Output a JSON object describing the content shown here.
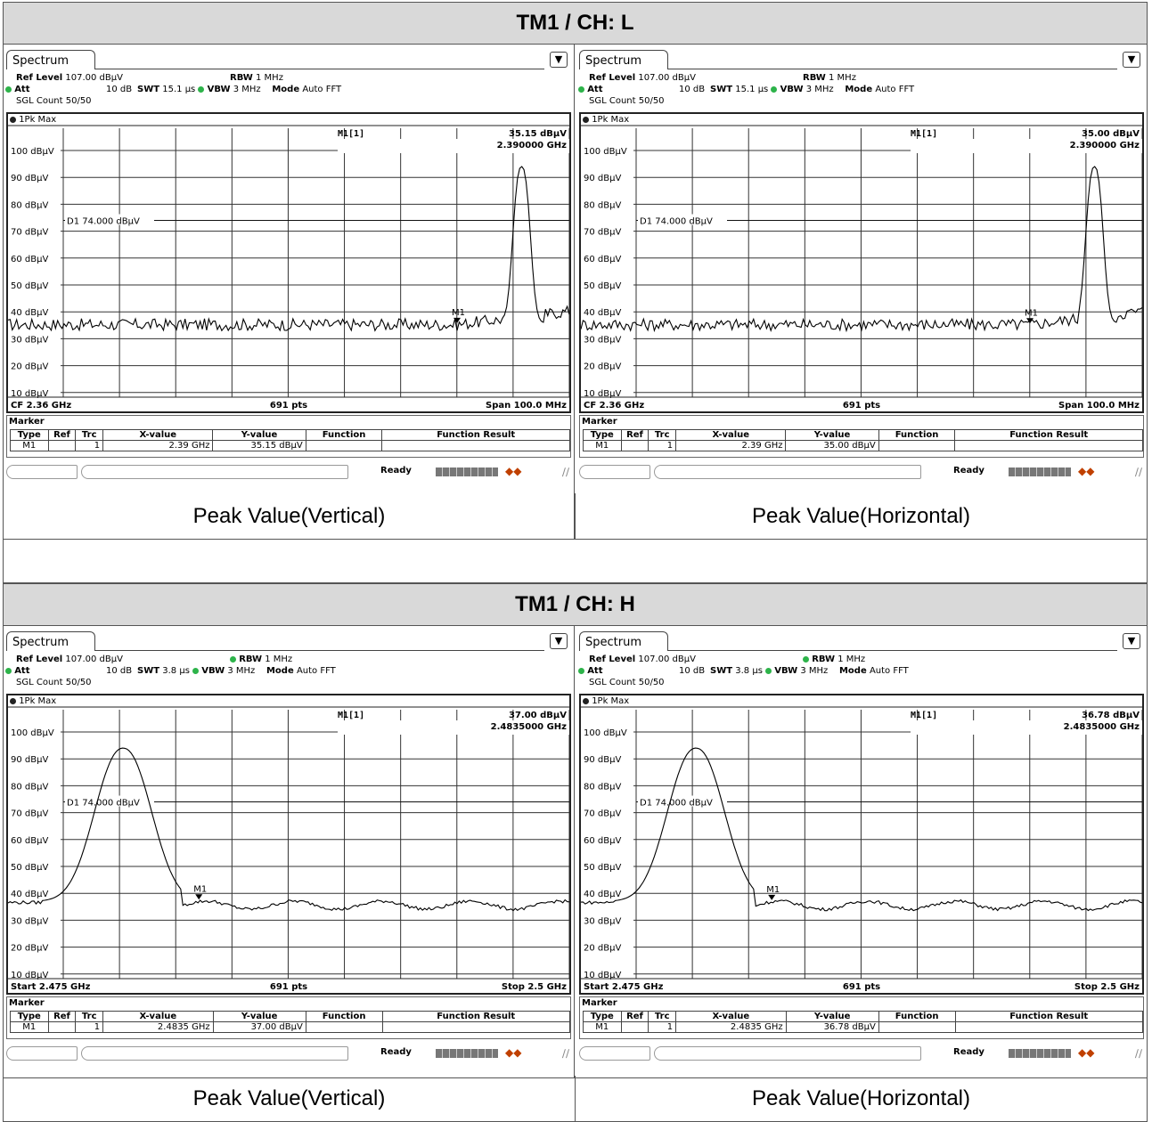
{
  "sections": [
    {
      "title": "TM1 / CH: L",
      "captions": [
        "Peak Value(Vertical)",
        "Peak Value(Horizontal)"
      ],
      "panels": [
        {
          "tab": "Spectrum",
          "ref_level_label": "Ref Level",
          "ref_level": "107.00 dBµV",
          "att_label": "Att",
          "att": "10 dB",
          "swt_label": "SWT",
          "swt": "15.1 µs",
          "rbw_label": "RBW",
          "rbw": "1 MHz",
          "vbw_label": "VBW",
          "vbw": "3 MHz",
          "mode_label": "Mode",
          "mode": "Auto FFT",
          "sgl_count": "SGL Count 50/50",
          "trace_label": "1Pk Max",
          "marker_name": "M1[1]",
          "marker_value": "35.15 dBµV",
          "marker_freq": "2.390000 GHz",
          "display_line": "D1  74.000 dBµV",
          "footer_left": "CF 2.36 GHz",
          "footer_mid": "691 pts",
          "footer_right": "Span 100.0 MHz",
          "marker_section": "Marker",
          "table_headers": [
            "Type",
            "Ref",
            "Trc",
            "X-value",
            "Y-value",
            "Function",
            "Function Result"
          ],
          "table_row": [
            "M1",
            "",
            "1",
            "2.39 GHz",
            "35.15 dBµV",
            "",
            ""
          ],
          "status": "Ready",
          "marker_x_frac": 0.8,
          "trace_type": "low"
        },
        {
          "tab": "Spectrum",
          "ref_level_label": "Ref Level",
          "ref_level": "107.00 dBµV",
          "att_label": "Att",
          "att": "10 dB",
          "swt_label": "SWT",
          "swt": "15.1 µs",
          "rbw_label": "RBW",
          "rbw": "1 MHz",
          "vbw_label": "VBW",
          "vbw": "3 MHz",
          "mode_label": "Mode",
          "mode": "Auto FFT",
          "sgl_count": "SGL Count 50/50",
          "trace_label": "1Pk Max",
          "marker_name": "M1[1]",
          "marker_value": "35.00 dBµV",
          "marker_freq": "2.390000 GHz",
          "display_line": "D1  74.000 dBµV",
          "footer_left": "CF 2.36 GHz",
          "footer_mid": "691 pts",
          "footer_right": "Span 100.0 MHz",
          "marker_section": "Marker",
          "table_headers": [
            "Type",
            "Ref",
            "Trc",
            "X-value",
            "Y-value",
            "Function",
            "Function Result"
          ],
          "table_row": [
            "M1",
            "",
            "1",
            "2.39 GHz",
            "35.00 dBµV",
            "",
            ""
          ],
          "status": "Ready",
          "marker_x_frac": 0.8,
          "trace_type": "low"
        }
      ]
    },
    {
      "title": "TM1 / CH: H",
      "captions": [
        "Peak Value(Vertical)",
        "Peak Value(Horizontal)"
      ],
      "panels": [
        {
          "tab": "Spectrum",
          "ref_level_label": "Ref Level",
          "ref_level": "107.00 dBµV",
          "att_label": "Att",
          "att": "10 dB",
          "swt_label": "SWT",
          "swt": "3.8 µs",
          "rbw_label": "RBW",
          "rbw": "1 MHz",
          "vbw_label": "VBW",
          "vbw": "3 MHz",
          "mode_label": "Mode",
          "mode": "Auto FFT",
          "sgl_count": "SGL Count 50/50",
          "trace_label": "1Pk Max",
          "marker_name": "M1[1]",
          "marker_value": "37.00 dBµV",
          "marker_freq": "2.4835000 GHz",
          "display_line": "D1  74.000 dBµV",
          "footer_left": "Start 2.475 GHz",
          "footer_mid": "691 pts",
          "footer_right": "Stop 2.5 GHz",
          "marker_section": "Marker",
          "table_headers": [
            "Type",
            "Ref",
            "Trc",
            "X-value",
            "Y-value",
            "Function",
            "Function Result"
          ],
          "table_row": [
            "M1",
            "",
            "1",
            "2.4835 GHz",
            "37.00 dBµV",
            "",
            ""
          ],
          "status": "Ready",
          "marker_x_frac": 0.34,
          "trace_type": "high"
        },
        {
          "tab": "Spectrum",
          "ref_level_label": "Ref Level",
          "ref_level": "107.00 dBµV",
          "att_label": "Att",
          "att": "10 dB",
          "swt_label": "SWT",
          "swt": "3.8 µs",
          "rbw_label": "RBW",
          "rbw": "1 MHz",
          "vbw_label": "VBW",
          "vbw": "3 MHz",
          "mode_label": "Mode",
          "mode": "Auto FFT",
          "sgl_count": "SGL Count 50/50",
          "trace_label": "1Pk Max",
          "marker_name": "M1[1]",
          "marker_value": "36.78 dBµV",
          "marker_freq": "2.4835000 GHz",
          "display_line": "D1  74.000 dBµV",
          "footer_left": "Start 2.475 GHz",
          "footer_mid": "691 pts",
          "footer_right": "Stop 2.5 GHz",
          "marker_section": "Marker",
          "table_headers": [
            "Type",
            "Ref",
            "Trc",
            "X-value",
            "Y-value",
            "Function",
            "Function Result"
          ],
          "table_row": [
            "M1",
            "",
            "1",
            "2.4835 GHz",
            "36.78 dBµV",
            "",
            ""
          ],
          "status": "Ready",
          "marker_x_frac": 0.34,
          "trace_type": "high"
        }
      ]
    }
  ],
  "y_ticks": [
    "100 dBµV",
    "90 dBµV",
    "80 dBµV",
    "70 dBµV",
    "60 dBµV",
    "50 dBµV",
    "40 dBµV",
    "30 dBµV",
    "20 dBµV",
    "10 dBµV"
  ],
  "marker_label": "M1",
  "colors": {
    "trace": "#000000",
    "grid": "#000000",
    "status_green": "#2db34a",
    "header_bg": "#d9d9d9"
  }
}
